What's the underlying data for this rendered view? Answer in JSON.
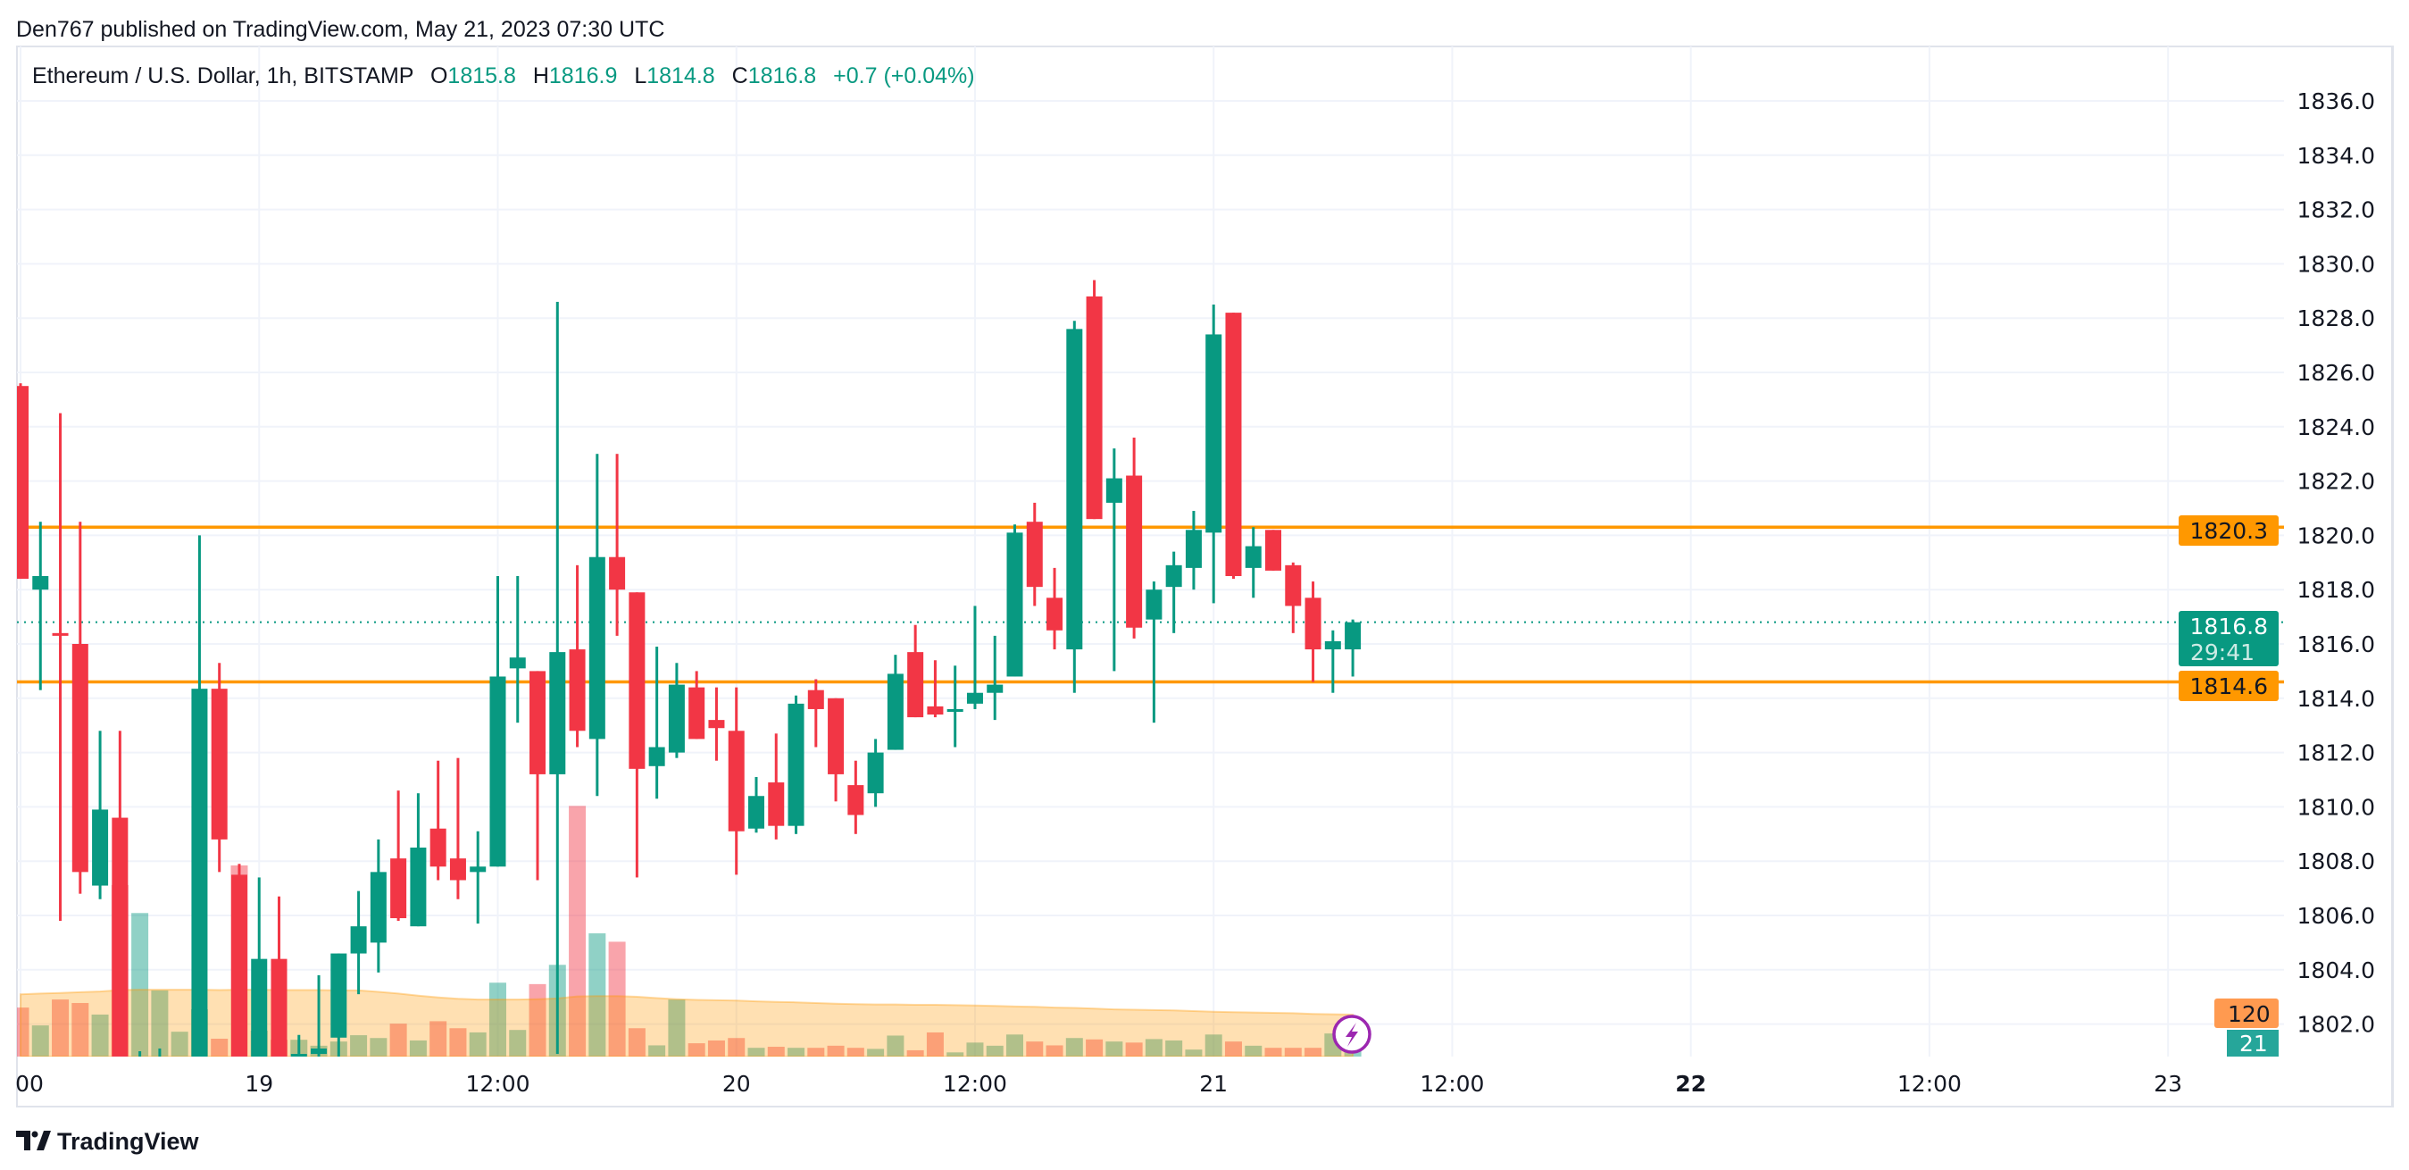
{
  "header": {
    "published": "Den767 published on TradingView.com, May 21, 2023 07:30 UTC"
  },
  "legend": {
    "symbol": "Ethereum / U.S. Dollar, 1h, BITSTAMP",
    "o_label": "O",
    "o_value": "1815.8",
    "h_label": "H",
    "h_value": "1816.9",
    "l_label": "L",
    "l_value": "1814.8",
    "c_label": "C",
    "c_value": "1816.8",
    "change": "+0.7 (+0.04%)"
  },
  "price_axis": {
    "last_price": "1816.8",
    "countdown": "29:41",
    "level_upper": "1820.3",
    "level_lower": "1814.6",
    "volume_ma_value": "120",
    "volume_value": "21"
  },
  "footer": {
    "brand": "TradingView"
  },
  "icons": {
    "alert": "lightning-icon",
    "logo": "tradingview-logo-icon"
  },
  "colors": {
    "up": "#089981",
    "down": "#F23645",
    "level": "#FF9800",
    "volume_ma": "#FF9800",
    "alert": "#9C27B0",
    "grid": "#F0F3FA"
  },
  "chart_data": {
    "type": "candlestick",
    "title": "Ethereum / U.S. Dollar, 1h, BITSTAMP",
    "interval": "1h",
    "ylim": [
      1801,
      1837.5
    ],
    "y_ticks": [
      "1836.0",
      "1834.0",
      "1832.0",
      "1830.0",
      "1828.0",
      "1826.0",
      "1824.0",
      "1822.0",
      "1820.0",
      "1818.0",
      "1816.0",
      "1814.0",
      "1812.0",
      "1810.0",
      "1808.0",
      "1806.0",
      "1804.0",
      "1802.0"
    ],
    "x_ticks": [
      {
        "label": "00",
        "time": "2023-05-18 12:00"
      },
      {
        "label": "19",
        "time": "2023-05-19 00:00"
      },
      {
        "label": "12:00",
        "time": "2023-05-19 12:00"
      },
      {
        "label": "20",
        "time": "2023-05-20 00:00"
      },
      {
        "label": "12:00",
        "time": "2023-05-20 12:00"
      },
      {
        "label": "21",
        "time": "2023-05-21 00:00"
      },
      {
        "label": "12:00",
        "time": "2023-05-21 12:00"
      },
      {
        "label": "22",
        "time": "2023-05-22 00:00",
        "bold": true
      },
      {
        "label": "12:00",
        "time": "2023-05-22 12:00"
      },
      {
        "label": "23",
        "time": "2023-05-23 00:00"
      }
    ],
    "x_end": "2023-05-23 11:00",
    "horizontal_levels": [
      1820.3,
      1814.6
    ],
    "last_price": 1816.8,
    "grid": true,
    "columns": [
      "time",
      "open",
      "high",
      "low",
      "close",
      "volume",
      "volume_ma"
    ],
    "candles": [
      [
        "2023-05-18 12:00",
        1825.5,
        1825.6,
        1818.4,
        1818.4,
        140,
        178
      ],
      [
        "2023-05-18 13:00",
        1818.0,
        1820.5,
        1814.3,
        1818.5,
        89,
        180
      ],
      [
        "2023-05-18 14:00",
        1816.4,
        1824.5,
        1805.8,
        1816.3,
        163,
        182
      ],
      [
        "2023-05-18 15:00",
        1816.0,
        1820.5,
        1806.8,
        1807.6,
        153,
        184
      ],
      [
        "2023-05-18 16:00",
        1807.1,
        1812.8,
        1806.6,
        1809.9,
        120,
        186
      ],
      [
        "2023-05-18 17:00",
        1809.6,
        1812.8,
        1799.5,
        1800.2,
        490,
        190
      ],
      [
        "2023-05-18 18:00",
        1799.5,
        1801.0,
        1798.0,
        1800.4,
        410,
        191
      ],
      [
        "2023-05-18 19:00",
        1799.8,
        1801.1,
        1799.0,
        1800.6,
        189,
        191
      ],
      [
        "2023-05-18 20:00",
        1800.1,
        1800.8,
        1798.5,
        1800.5,
        71,
        191
      ],
      [
        "2023-05-18 21:00",
        1800.3,
        1820.0,
        1799.5,
        1814.35,
        135,
        191
      ],
      [
        "2023-05-18 22:00",
        1814.35,
        1815.3,
        1807.6,
        1808.8,
        51,
        190
      ],
      [
        "2023-05-18 23:00",
        1807.5,
        1807.9,
        1799.8,
        1800.4,
        546,
        191
      ],
      [
        "2023-05-19 00:00",
        1800.4,
        1807.4,
        1800.0,
        1804.4,
        74,
        191
      ],
      [
        "2023-05-19 01:00",
        1804.4,
        1806.7,
        1799.9,
        1800.5,
        48,
        190
      ],
      [
        "2023-05-19 02:00",
        1800.5,
        1801.6,
        1799.8,
        1800.9,
        48,
        190
      ],
      [
        "2023-05-19 03:00",
        1800.9,
        1803.8,
        1800.4,
        1801.1,
        31,
        190
      ],
      [
        "2023-05-19 04:00",
        1801.5,
        1804.6,
        1800.8,
        1804.6,
        43,
        189
      ],
      [
        "2023-05-19 05:00",
        1804.6,
        1806.9,
        1803.1,
        1805.6,
        61,
        189
      ],
      [
        "2023-05-19 06:00",
        1805.0,
        1808.8,
        1803.9,
        1807.6,
        53,
        185
      ],
      [
        "2023-05-19 07:00",
        1808.1,
        1810.6,
        1805.8,
        1805.9,
        94,
        180
      ],
      [
        "2023-05-19 08:00",
        1805.6,
        1810.5,
        1805.6,
        1808.5,
        46,
        174
      ],
      [
        "2023-05-19 09:00",
        1809.2,
        1811.7,
        1807.3,
        1807.8,
        101,
        169
      ],
      [
        "2023-05-19 10:00",
        1808.1,
        1811.8,
        1806.6,
        1807.3,
        81,
        165
      ],
      [
        "2023-05-19 11:00",
        1807.6,
        1809.1,
        1805.7,
        1807.8,
        69,
        163
      ],
      [
        "2023-05-19 12:00",
        1807.8,
        1818.5,
        1807.8,
        1814.8,
        211,
        163
      ],
      [
        "2023-05-19 13:00",
        1815.1,
        1818.5,
        1813.1,
        1815.5,
        76,
        163
      ],
      [
        "2023-05-19 14:00",
        1815.0,
        1815.0,
        1807.3,
        1811.2,
        207,
        164
      ],
      [
        "2023-05-19 15:00",
        1811.2,
        1828.6,
        1800.9,
        1815.7,
        262,
        166
      ],
      [
        "2023-05-19 16:00",
        1815.8,
        1818.9,
        1812.2,
        1812.8,
        716,
        172
      ],
      [
        "2023-05-19 17:00",
        1812.5,
        1823.0,
        1810.4,
        1819.2,
        352,
        173
      ],
      [
        "2023-05-19 18:00",
        1819.2,
        1823.0,
        1816.3,
        1818.0,
        328,
        173
      ],
      [
        "2023-05-19 19:00",
        1817.9,
        1817.9,
        1807.4,
        1811.4,
        81,
        171
      ],
      [
        "2023-05-19 20:00",
        1811.5,
        1815.9,
        1810.3,
        1812.2,
        32,
        167
      ],
      [
        "2023-05-19 21:00",
        1812.0,
        1815.3,
        1811.8,
        1814.5,
        163,
        164
      ],
      [
        "2023-05-19 22:00",
        1814.4,
        1815.0,
        1812.5,
        1812.5,
        38,
        162
      ],
      [
        "2023-05-19 23:00",
        1813.2,
        1814.4,
        1811.7,
        1812.9,
        46,
        161
      ],
      [
        "2023-05-20 00:00",
        1812.8,
        1814.4,
        1807.5,
        1809.1,
        53,
        160
      ],
      [
        "2023-05-20 01:00",
        1809.2,
        1811.1,
        1809.05,
        1810.4,
        25,
        158
      ],
      [
        "2023-05-20 02:00",
        1810.9,
        1812.7,
        1808.8,
        1809.3,
        28,
        156
      ],
      [
        "2023-05-20 03:00",
        1809.3,
        1814.1,
        1809.0,
        1813.8,
        25,
        155
      ],
      [
        "2023-05-20 04:00",
        1814.3,
        1814.7,
        1812.2,
        1813.6,
        25,
        153
      ],
      [
        "2023-05-20 05:00",
        1814.0,
        1814.0,
        1810.2,
        1811.2,
        31,
        151
      ],
      [
        "2023-05-20 06:00",
        1810.8,
        1811.7,
        1809.0,
        1809.7,
        25,
        150
      ],
      [
        "2023-05-20 07:00",
        1810.5,
        1812.5,
        1810.0,
        1812.0,
        22,
        149
      ],
      [
        "2023-05-20 08:00",
        1812.1,
        1815.6,
        1812.1,
        1814.9,
        60,
        149
      ],
      [
        "2023-05-20 09:00",
        1815.7,
        1816.7,
        1813.3,
        1813.3,
        18,
        148
      ],
      [
        "2023-05-20 10:00",
        1813.7,
        1815.4,
        1813.3,
        1813.4,
        69,
        148
      ],
      [
        "2023-05-20 11:00",
        1813.5,
        1815.2,
        1812.2,
        1813.6,
        12,
        147
      ],
      [
        "2023-05-20 12:00",
        1813.8,
        1817.4,
        1813.6,
        1814.2,
        40,
        146
      ],
      [
        "2023-05-20 13:00",
        1814.2,
        1816.3,
        1813.2,
        1814.5,
        31,
        145
      ],
      [
        "2023-05-20 14:00",
        1814.8,
        1820.4,
        1814.8,
        1820.1,
        63,
        143
      ],
      [
        "2023-05-20 15:00",
        1820.5,
        1821.2,
        1817.4,
        1818.1,
        43,
        142
      ],
      [
        "2023-05-20 16:00",
        1817.7,
        1818.8,
        1815.8,
        1816.5,
        32,
        140
      ],
      [
        "2023-05-20 17:00",
        1815.8,
        1827.9,
        1814.2,
        1827.6,
        53,
        139
      ],
      [
        "2023-05-20 18:00",
        1828.8,
        1829.4,
        1820.6,
        1820.6,
        49,
        137
      ],
      [
        "2023-05-20 19:00",
        1821.2,
        1823.2,
        1815.0,
        1822.1,
        43,
        135
      ],
      [
        "2023-05-20 20:00",
        1822.2,
        1823.6,
        1816.2,
        1816.6,
        40,
        134
      ],
      [
        "2023-05-20 21:00",
        1816.9,
        1818.3,
        1813.1,
        1818.0,
        50,
        133
      ],
      [
        "2023-05-20 22:00",
        1818.1,
        1819.4,
        1816.4,
        1818.9,
        46,
        132
      ],
      [
        "2023-05-20 23:00",
        1818.8,
        1820.9,
        1818.0,
        1820.2,
        20,
        130
      ],
      [
        "2023-05-21 00:00",
        1820.1,
        1828.5,
        1817.5,
        1827.4,
        63,
        128
      ],
      [
        "2023-05-21 01:00",
        1828.2,
        1828.2,
        1818.4,
        1818.5,
        43,
        127
      ],
      [
        "2023-05-21 02:00",
        1818.8,
        1820.3,
        1817.7,
        1819.6,
        31,
        126
      ],
      [
        "2023-05-21 03:00",
        1820.2,
        1820.2,
        1818.7,
        1818.7,
        25,
        125
      ],
      [
        "2023-05-21 04:00",
        1818.9,
        1819.0,
        1816.4,
        1817.4,
        25,
        124
      ],
      [
        "2023-05-21 05:00",
        1817.7,
        1818.3,
        1814.6,
        1815.8,
        25,
        122
      ],
      [
        "2023-05-21 06:00",
        1815.8,
        1816.5,
        1814.2,
        1816.1,
        66,
        121
      ],
      [
        "2023-05-21 07:00",
        1815.8,
        1816.9,
        1814.8,
        1816.8,
        21,
        120
      ]
    ]
  }
}
